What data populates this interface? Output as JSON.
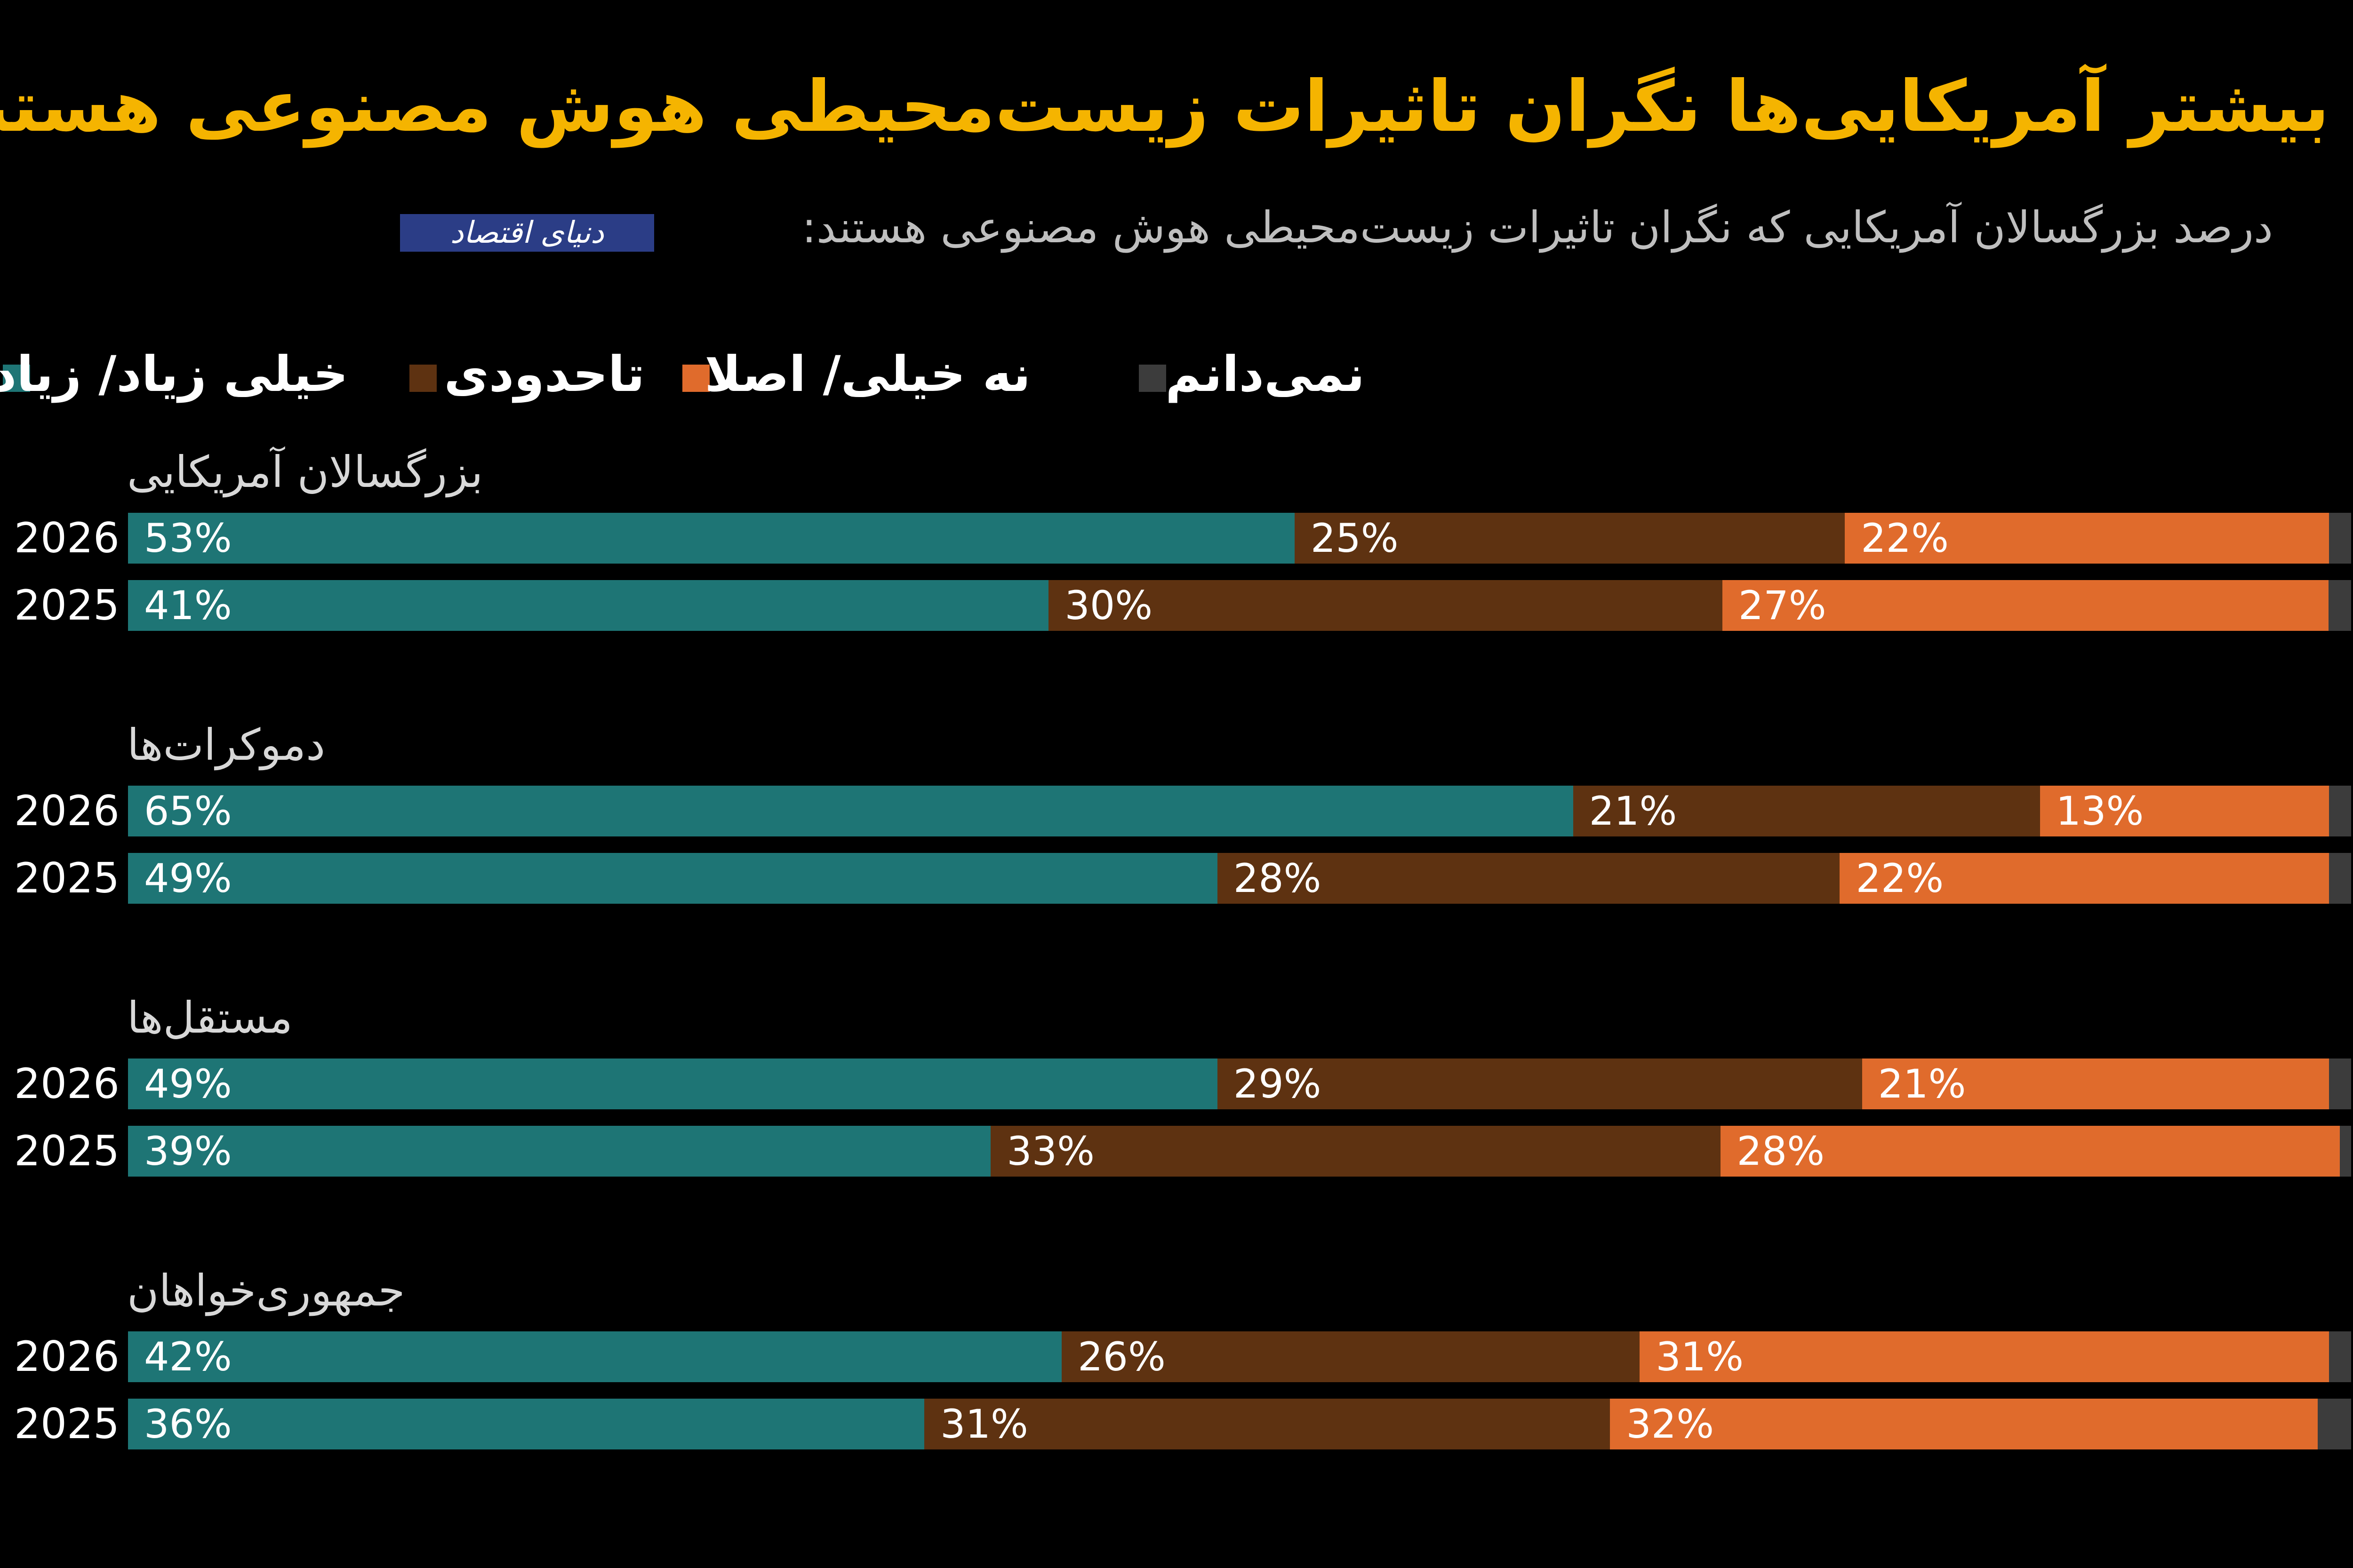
{
  "title": "بیشتر آمریکایی‌ها نگران تاثیرات زیست‌محیطی هوش مصنوعی هستند",
  "subtitle": "درصد بزرگسالان آمریکایی که نگران تاثیرات زیست‌محیطی هوش مصنوعی هستند:",
  "logo": "دنیای اقتصاد",
  "colors": {
    "background": "#000000",
    "title": "#f5b400",
    "very_much": "#1e7575",
    "somewhat": "#5e3211",
    "not_much": "#e06b2c",
    "dont_know": "#3c3c3c"
  },
  "legend": [
    {
      "key": "very_much",
      "label": "خیلی زیاد/ زیاد"
    },
    {
      "key": "somewhat",
      "label": "تاحدودی"
    },
    {
      "key": "not_much",
      "label": "نه خیلی/ اصلا"
    },
    {
      "key": "dont_know",
      "label": "نمی‌دانم"
    }
  ],
  "chart_data": {
    "type": "bar",
    "orientation": "horizontal",
    "stacked": true,
    "normalized": true,
    "series_order": [
      "very_much",
      "somewhat",
      "not_much",
      "dont_know"
    ],
    "groups": [
      {
        "label": "بزرگسالان آمریکایی",
        "rows": [
          {
            "year": "2026",
            "values": [
              53,
              25,
              22,
              1
            ],
            "labels": [
              "53%",
              "25%",
              "22%",
              ""
            ]
          },
          {
            "year": "2025",
            "values": [
              41,
              30,
              27,
              1
            ],
            "labels": [
              "41%",
              "30%",
              "27%",
              ""
            ]
          }
        ]
      },
      {
        "label": "دموکرات‌ها",
        "rows": [
          {
            "year": "2026",
            "values": [
              65,
              21,
              13,
              1
            ],
            "labels": [
              "65%",
              "21%",
              "13%",
              ""
            ]
          },
          {
            "year": "2025",
            "values": [
              49,
              28,
              22,
              1
            ],
            "labels": [
              "49%",
              "28%",
              "22%",
              ""
            ]
          }
        ]
      },
      {
        "label": "مستقل‌ها",
        "rows": [
          {
            "year": "2026",
            "values": [
              49,
              29,
              21,
              1
            ],
            "labels": [
              "49%",
              "29%",
              "21%",
              ""
            ]
          },
          {
            "year": "2025",
            "values": [
              39,
              33,
              28,
              0.5
            ],
            "labels": [
              "39%",
              "33%",
              "28%",
              ""
            ]
          }
        ]
      },
      {
        "label": "جمهوری‌خواهان",
        "rows": [
          {
            "year": "2026",
            "values": [
              42,
              26,
              31,
              1
            ],
            "labels": [
              "42%",
              "26%",
              "31%",
              ""
            ]
          },
          {
            "year": "2025",
            "values": [
              36,
              31,
              32,
              1.5
            ],
            "labels": [
              "36%",
              "31%",
              "32%",
              ""
            ]
          }
        ]
      }
    ]
  }
}
